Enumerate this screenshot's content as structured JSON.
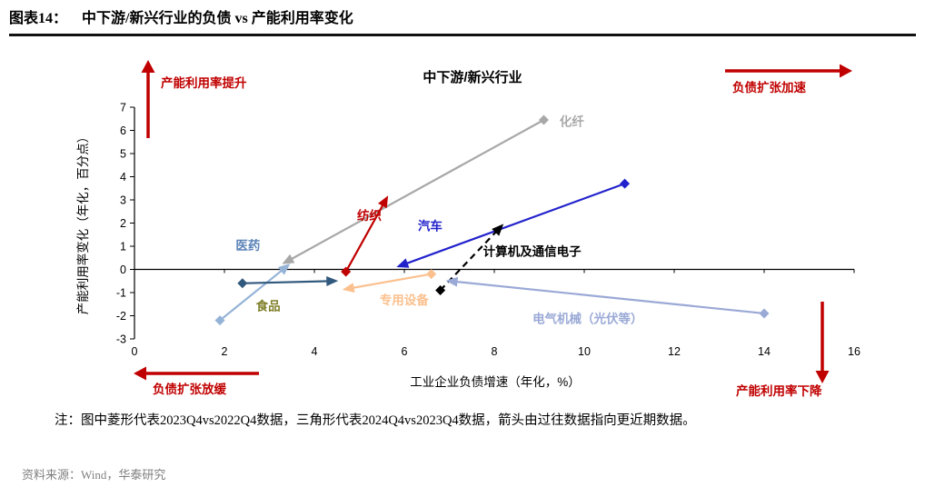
{
  "header": {
    "figure_label": "图表14：",
    "title": "中下游/新兴行业的负债 vs 产能利用率变化"
  },
  "chart_data": {
    "type": "scatter",
    "title": "中下游/新兴行业",
    "xlabel": "工业企业负债增速（年化，%）",
    "ylabel": "产能利用率变化（年化，百分点）",
    "xlim": [
      0,
      16
    ],
    "ylim": [
      -3,
      7
    ],
    "xticks": [
      0,
      2,
      4,
      6,
      8,
      10,
      12,
      14,
      16
    ],
    "yticks": [
      -3,
      -2,
      -1,
      0,
      1,
      2,
      3,
      4,
      5,
      6,
      7
    ],
    "grid": false,
    "accent_red": "#c00000",
    "marker_semantics": {
      "diamond": "2023Q4vs2022Q4",
      "triangle": "2024Q4vs2023Q4",
      "arrow": "由过往数据指向更近期数据"
    },
    "series": [
      {
        "name": "化纤",
        "color": "#a8a8a8",
        "dashed": false,
        "from": [
          9.1,
          6.45
        ],
        "to": [
          3.35,
          0.3
        ],
        "label_at": [
          9.45,
          6.35
        ]
      },
      {
        "name": "医药",
        "color": "#95b3d7",
        "label_color": "#5b83b8",
        "dashed": false,
        "from": [
          1.9,
          -2.2
        ],
        "to": [
          3.4,
          0.15
        ],
        "label_at": [
          2.25,
          1.0
        ]
      },
      {
        "name": "食品",
        "color": "#31597d",
        "label_color": "#7f7f2a",
        "dashed": false,
        "from": [
          2.4,
          -0.6
        ],
        "to": [
          4.45,
          -0.5
        ],
        "label_at": [
          2.7,
          -1.6
        ]
      },
      {
        "name": "纺织",
        "color": "#c00000",
        "dashed": false,
        "from": [
          4.7,
          -0.1
        ],
        "to": [
          5.6,
          3.05
        ],
        "label_at": [
          4.95,
          2.3
        ]
      },
      {
        "name": "汽车",
        "color": "#2222cc",
        "dashed": false,
        "from": [
          10.9,
          3.7
        ],
        "to": [
          5.9,
          0.15
        ],
        "label_at": [
          6.3,
          1.85
        ]
      },
      {
        "name": "计算机及通信电子",
        "color": "#000000",
        "dashed": true,
        "from": [
          6.8,
          -0.9
        ],
        "to": [
          8.15,
          1.85
        ],
        "label_at": [
          7.75,
          0.75
        ]
      },
      {
        "name": "专用设备",
        "color": "#fbc08e",
        "dashed": false,
        "from": [
          6.6,
          -0.2
        ],
        "to": [
          4.7,
          -0.85
        ],
        "label_at": [
          5.45,
          -1.35
        ]
      },
      {
        "name": "电气机械（光伏等）",
        "color": "#9aa9d6",
        "dashed": false,
        "from": [
          14.0,
          -1.9
        ],
        "to": [
          7.0,
          -0.5
        ],
        "label_at": [
          8.85,
          -2.15
        ]
      }
    ],
    "quadrant_annotations": [
      {
        "id": "top-left",
        "text": "产能利用率提升",
        "arrow": "up"
      },
      {
        "id": "top-right",
        "text": "负债扩张加速",
        "arrow": "right"
      },
      {
        "id": "bottom-left",
        "text": "负债扩张放缓",
        "arrow": "left"
      },
      {
        "id": "bottom-right",
        "text": "产能利用率下降",
        "arrow": "down"
      }
    ]
  },
  "note": "注：图中菱形代表2023Q4vs2022Q4数据，三角形代表2024Q4vs2023Q4数据，箭头由过往数据指向更近期数据。",
  "source": "资料来源：Wind，华泰研究"
}
